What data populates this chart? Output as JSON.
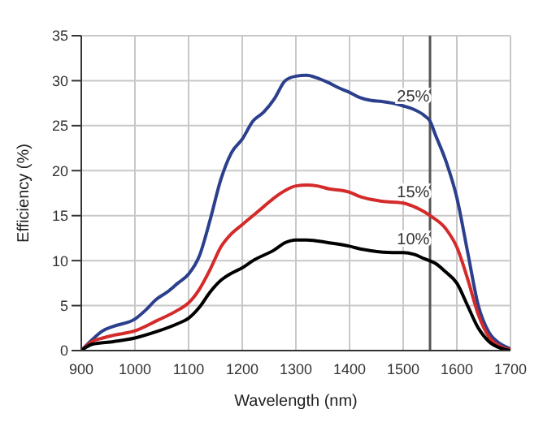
{
  "chart_data": {
    "type": "line",
    "xlabel": "Wavelength (nm)",
    "ylabel": "Efficiency (%)",
    "xlim": [
      900,
      1700
    ],
    "xticks": [
      900,
      1000,
      1100,
      1200,
      1300,
      1400,
      1500,
      1600,
      1700
    ],
    "ylim": [
      0,
      35
    ],
    "yticks": [
      0,
      5,
      10,
      15,
      20,
      25,
      30,
      35
    ],
    "grid": true,
    "marker": "none",
    "line_style": "solid",
    "ref_lines": [
      {
        "axis": "x",
        "value": 1550,
        "color": "#555555"
      }
    ],
    "series": [
      {
        "name": "25%",
        "color": "#2b3f8c",
        "x": [
          900,
          920,
          940,
          960,
          1000,
          1020,
          1040,
          1060,
          1080,
          1100,
          1120,
          1140,
          1160,
          1180,
          1200,
          1220,
          1240,
          1260,
          1280,
          1300,
          1320,
          1340,
          1360,
          1380,
          1400,
          1420,
          1440,
          1460,
          1480,
          1500,
          1520,
          1540,
          1550,
          1560,
          1580,
          1600,
          1620,
          1640,
          1660,
          1680,
          1700
        ],
        "values": [
          0,
          1.2,
          2.2,
          2.7,
          3.5,
          4.5,
          5.7,
          6.5,
          7.5,
          8.5,
          10.5,
          14.5,
          19,
          22,
          23.5,
          25.5,
          26.5,
          28,
          30,
          30.5,
          30.6,
          30.3,
          29.8,
          29.2,
          28.7,
          28.1,
          27.8,
          27.7,
          27.5,
          27.2,
          26.8,
          26.1,
          25.5,
          24,
          21,
          17,
          11,
          5,
          2,
          0.8,
          0.2
        ]
      },
      {
        "name": "15%",
        "color": "#d42a2a",
        "x": [
          900,
          920,
          940,
          960,
          1000,
          1040,
          1080,
          1100,
          1120,
          1140,
          1160,
          1180,
          1200,
          1220,
          1240,
          1260,
          1280,
          1300,
          1320,
          1340,
          1360,
          1400,
          1420,
          1440,
          1460,
          1500,
          1520,
          1540,
          1550,
          1580,
          1600,
          1620,
          1640,
          1660,
          1680,
          1700
        ],
        "values": [
          0,
          1,
          1.4,
          1.7,
          2.2,
          3.3,
          4.5,
          5.3,
          6.8,
          9,
          11.5,
          13,
          14,
          15,
          16,
          17,
          17.8,
          18.3,
          18.4,
          18.3,
          18,
          17.6,
          17.1,
          16.8,
          16.6,
          16.4,
          16,
          15.4,
          15,
          13.5,
          11.5,
          8,
          4,
          1.5,
          0.5,
          0.1
        ]
      },
      {
        "name": "10%",
        "color": "#000000",
        "x": [
          900,
          920,
          960,
          1000,
          1040,
          1080,
          1100,
          1120,
          1140,
          1160,
          1180,
          1200,
          1220,
          1260,
          1280,
          1300,
          1320,
          1360,
          1400,
          1420,
          1440,
          1480,
          1500,
          1520,
          1540,
          1560,
          1580,
          1600,
          1620,
          1640,
          1660,
          1680,
          1700
        ],
        "values": [
          0,
          0.7,
          1,
          1.4,
          2.1,
          3,
          3.6,
          4.8,
          6.5,
          7.8,
          8.6,
          9.2,
          10,
          11.2,
          12,
          12.3,
          12.3,
          12,
          11.6,
          11.3,
          11.1,
          10.9,
          10.9,
          10.7,
          10.2,
          9.7,
          8.7,
          7.5,
          5,
          2.5,
          1,
          0.3,
          0
        ]
      }
    ]
  }
}
